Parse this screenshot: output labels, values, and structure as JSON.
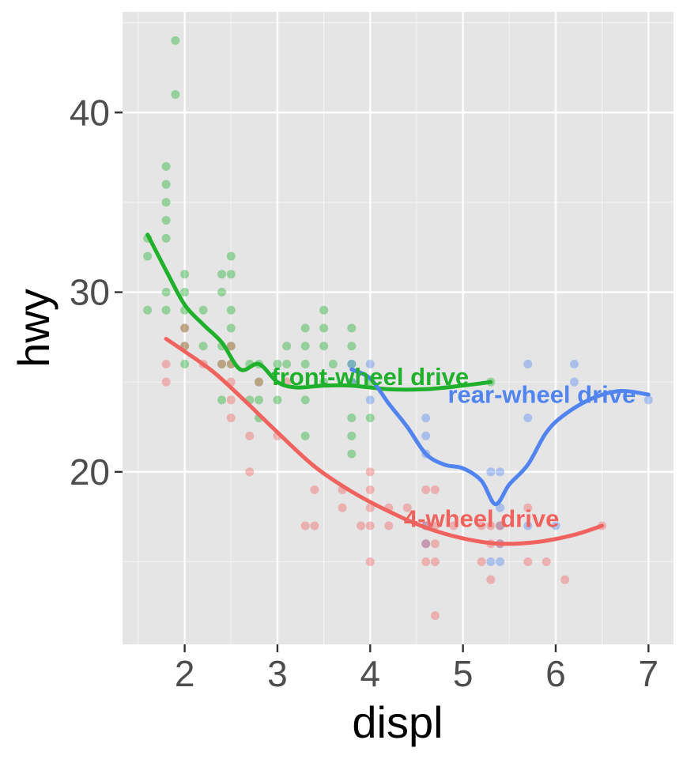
{
  "chart_data": {
    "type": "scatter",
    "xlabel": "displ",
    "ylabel": "hwy",
    "xlim": [
      1.33,
      7.27
    ],
    "ylim": [
      10.4,
      45.6
    ],
    "x_ticks": [
      2,
      3,
      4,
      5,
      6,
      7
    ],
    "y_ticks": [
      20,
      30,
      40
    ],
    "grid": true,
    "background": "#e5e5e5",
    "series": [
      {
        "name": "front-wheel drive",
        "color": "#1fb02c",
        "label_at": [
          4.0,
          25.2
        ],
        "points": [
          [
            1.6,
            33
          ],
          [
            1.6,
            32
          ],
          [
            1.6,
            29
          ],
          [
            1.8,
            29
          ],
          [
            1.8,
            30
          ],
          [
            1.8,
            33
          ],
          [
            1.8,
            34
          ],
          [
            1.8,
            35
          ],
          [
            1.8,
            36
          ],
          [
            1.8,
            37
          ],
          [
            1.9,
            44
          ],
          [
            1.9,
            41
          ],
          [
            2.0,
            31
          ],
          [
            2.0,
            30
          ],
          [
            2.0,
            29
          ],
          [
            2.0,
            28
          ],
          [
            2.0,
            27
          ],
          [
            2.0,
            26
          ],
          [
            2.2,
            27
          ],
          [
            2.2,
            29
          ],
          [
            2.4,
            31
          ],
          [
            2.4,
            30
          ],
          [
            2.4,
            27
          ],
          [
            2.4,
            26
          ],
          [
            2.4,
            24
          ],
          [
            2.5,
            32
          ],
          [
            2.5,
            31
          ],
          [
            2.5,
            29
          ],
          [
            2.5,
            28
          ],
          [
            2.5,
            27
          ],
          [
            2.5,
            26
          ],
          [
            2.7,
            26
          ],
          [
            2.7,
            24
          ],
          [
            2.8,
            26
          ],
          [
            2.8,
            25
          ],
          [
            2.8,
            24
          ],
          [
            2.8,
            23
          ],
          [
            3.0,
            26
          ],
          [
            3.0,
            24
          ],
          [
            3.1,
            27
          ],
          [
            3.1,
            26
          ],
          [
            3.3,
            28
          ],
          [
            3.3,
            27
          ],
          [
            3.3,
            26
          ],
          [
            3.3,
            24
          ],
          [
            3.3,
            22
          ],
          [
            3.5,
            29
          ],
          [
            3.5,
            28
          ],
          [
            3.5,
            27
          ],
          [
            3.5,
            25
          ],
          [
            3.6,
            26
          ],
          [
            3.8,
            28
          ],
          [
            3.8,
            27
          ],
          [
            3.8,
            26
          ],
          [
            3.8,
            25
          ],
          [
            3.8,
            23
          ],
          [
            3.8,
            22
          ],
          [
            3.8,
            21
          ],
          [
            4.0,
            23
          ],
          [
            4.0,
            25
          ],
          [
            5.3,
            25
          ]
        ],
        "smooth": [
          [
            1.6,
            33.2
          ],
          [
            1.8,
            31.2
          ],
          [
            2.0,
            29.3
          ],
          [
            2.2,
            28.2
          ],
          [
            2.4,
            27.2
          ],
          [
            2.6,
            25.7
          ],
          [
            2.8,
            26.0
          ],
          [
            3.0,
            25.0
          ],
          [
            3.2,
            24.7
          ],
          [
            3.5,
            24.8
          ],
          [
            3.8,
            24.8
          ],
          [
            4.2,
            24.6
          ],
          [
            4.6,
            24.6
          ],
          [
            5.0,
            24.8
          ],
          [
            5.3,
            25.0
          ]
        ]
      },
      {
        "name": "rear-wheel drive",
        "color": "#5184f0",
        "label_at": [
          5.85,
          24.2
        ],
        "points": [
          [
            3.8,
            26
          ],
          [
            3.8,
            25
          ],
          [
            4.0,
            26
          ],
          [
            4.0,
            24
          ],
          [
            4.6,
            23
          ],
          [
            4.6,
            22
          ],
          [
            4.6,
            21
          ],
          [
            4.6,
            17
          ],
          [
            4.6,
            16
          ],
          [
            5.3,
            20
          ],
          [
            5.3,
            15
          ],
          [
            5.4,
            20
          ],
          [
            5.4,
            18
          ],
          [
            5.4,
            17
          ],
          [
            5.4,
            16
          ],
          [
            5.4,
            15
          ],
          [
            5.7,
            26
          ],
          [
            5.7,
            23
          ],
          [
            5.7,
            17
          ],
          [
            6.0,
            17
          ],
          [
            6.2,
            26
          ],
          [
            6.2,
            25
          ],
          [
            7.0,
            24
          ]
        ],
        "smooth": [
          [
            3.8,
            25.7
          ],
          [
            4.0,
            25.2
          ],
          [
            4.2,
            23.8
          ],
          [
            4.4,
            22.5
          ],
          [
            4.6,
            21.0
          ],
          [
            4.8,
            20.4
          ],
          [
            5.0,
            20.2
          ],
          [
            5.2,
            19.5
          ],
          [
            5.35,
            18.2
          ],
          [
            5.5,
            19.3
          ],
          [
            5.7,
            20.4
          ],
          [
            5.9,
            22.2
          ],
          [
            6.1,
            23.2
          ],
          [
            6.4,
            24.1
          ],
          [
            6.7,
            24.5
          ],
          [
            7.0,
            24.3
          ]
        ]
      },
      {
        "name": "4-wheel drive",
        "color": "#f0625e",
        "label_at": [
          5.2,
          17.3
        ],
        "points": [
          [
            1.8,
            26
          ],
          [
            1.8,
            25
          ],
          [
            2.0,
            28
          ],
          [
            2.0,
            27
          ],
          [
            2.2,
            26
          ],
          [
            2.4,
            26
          ],
          [
            2.5,
            27
          ],
          [
            2.5,
            26
          ],
          [
            2.5,
            25
          ],
          [
            2.5,
            24
          ],
          [
            2.5,
            23
          ],
          [
            2.7,
            22
          ],
          [
            2.7,
            20
          ],
          [
            2.8,
            25
          ],
          [
            3.0,
            22
          ],
          [
            3.1,
            25
          ],
          [
            3.3,
            17
          ],
          [
            3.4,
            19
          ],
          [
            3.4,
            17
          ],
          [
            3.7,
            19
          ],
          [
            3.7,
            18
          ],
          [
            3.9,
            17
          ],
          [
            4.0,
            20
          ],
          [
            4.0,
            19
          ],
          [
            4.0,
            18
          ],
          [
            4.0,
            17
          ],
          [
            4.0,
            15
          ],
          [
            4.2,
            18
          ],
          [
            4.2,
            17
          ],
          [
            4.4,
            18
          ],
          [
            4.6,
            19
          ],
          [
            4.6,
            17
          ],
          [
            4.6,
            16
          ],
          [
            4.6,
            15
          ],
          [
            4.7,
            19
          ],
          [
            4.7,
            17
          ],
          [
            4.7,
            16
          ],
          [
            4.7,
            15
          ],
          [
            4.7,
            12
          ],
          [
            4.9,
            17
          ],
          [
            5.2,
            17
          ],
          [
            5.2,
            15
          ],
          [
            5.3,
            17
          ],
          [
            5.3,
            16
          ],
          [
            5.3,
            14
          ],
          [
            5.4,
            17
          ],
          [
            5.4,
            16
          ],
          [
            5.7,
            18
          ],
          [
            5.7,
            15
          ],
          [
            5.9,
            15
          ],
          [
            6.1,
            14
          ],
          [
            6.5,
            17
          ]
        ],
        "smooth": [
          [
            1.8,
            27.4
          ],
          [
            2.0,
            26.7
          ],
          [
            2.3,
            25.6
          ],
          [
            2.6,
            24.2
          ],
          [
            3.0,
            22.2
          ],
          [
            3.4,
            20.3
          ],
          [
            3.8,
            18.9
          ],
          [
            4.2,
            17.8
          ],
          [
            4.6,
            16.9
          ],
          [
            5.0,
            16.3
          ],
          [
            5.4,
            16.0
          ],
          [
            5.8,
            16.1
          ],
          [
            6.2,
            16.5
          ],
          [
            6.5,
            17.0
          ]
        ]
      }
    ]
  }
}
